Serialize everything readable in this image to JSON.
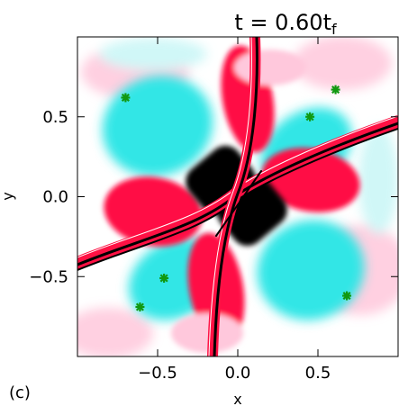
{
  "chart_data": {
    "type": "heatmap",
    "title_main": "t = 0.60t",
    "title_sub": "f",
    "xlabel": "x",
    "ylabel": "y",
    "xlim": [
      -1.0,
      1.0
    ],
    "ylim": [
      -1.0,
      1.0
    ],
    "xticks": [
      -0.5,
      0.0,
      0.5
    ],
    "xtick_labels": [
      "−0.5",
      "0.0",
      "0.5"
    ],
    "yticks": [
      -0.5,
      0.0,
      0.5
    ],
    "ytick_labels": [
      "−0.5",
      "0.0",
      "0.5"
    ],
    "grid": false,
    "colors": {
      "positive": "#ff1144",
      "positive_light": "#ffc8dc",
      "negative": "#33e6e6",
      "negative_light": "#c8f6f6",
      "strongest": "#000000",
      "background": "#ffffff",
      "marker": "#119911"
    },
    "markers": {
      "symbol": "asterisk",
      "points": [
        {
          "x": -0.7,
          "y": 0.62
        },
        {
          "x": 0.61,
          "y": 0.67
        },
        {
          "x": 0.45,
          "y": 0.5
        },
        {
          "x": -0.61,
          "y": -0.69
        },
        {
          "x": -0.46,
          "y": -0.51
        },
        {
          "x": 0.68,
          "y": -0.62
        }
      ]
    }
  },
  "panel_label": "(c)"
}
